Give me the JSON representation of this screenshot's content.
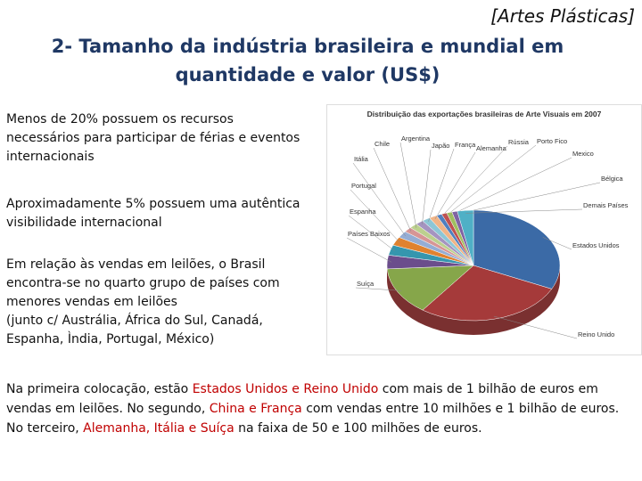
{
  "header": {
    "tag": "[Artes Plásticas]",
    "title_lines": [
      "2- Tamanho da indústria brasileira e mundial em",
      "quantidade e valor (US$)"
    ]
  },
  "paragraphs": [
    [
      "Menos de 20% possuem os recursos",
      "necessários para participar de férias e eventos",
      "internacionais"
    ],
    [
      "Aproximadamente 5% possuem uma autêntica",
      "visibilidade internacional"
    ],
    [
      "Em relação às vendas em leilões, o Brasil",
      "encontra-se no quarto grupo de países com",
      "menores vendas em leilões",
      "(junto c/ Austrália, África do Sul, Canadá,",
      "Espanha, Ìndia, Portugal, México)"
    ]
  ],
  "summary": [
    {
      "text": "Na primeira colocação, estão "
    },
    {
      "text": "Estados Unidos e Reino Unido",
      "color": "#c00000"
    },
    {
      "text": " com mais de 1 bilhão de euros em vendas em leilões. No segundo, "
    },
    {
      "text": "China e França",
      "color": "#c00000"
    },
    {
      "text": " com vendas entre 10 milhões e 1 bilhão de euros. No terceiro, "
    },
    {
      "text": "Alemanha, Itália e Suíça",
      "color": "#c00000"
    },
    {
      "text": " na faixa de 50 e 100 milhões de euros."
    }
  ],
  "chart_data": {
    "type": "pie",
    "title": "Distribuição das exportações brasileiras de Arte Visuais em 2007",
    "categories": [
      "Estados Unidos",
      "Reino Unido",
      "Suíça",
      "Países Baixos",
      "Espanha",
      "Portugal",
      "Itália",
      "Chile",
      "Argentina",
      "Japão",
      "França",
      "Alemanha",
      "Rússia",
      "Porto Fico",
      "Mexico",
      "Bélgica",
      "Demais Países"
    ],
    "values": [
      32,
      28,
      14,
      4,
      3,
      2.5,
      2,
      1.5,
      1.5,
      1.5,
      1.5,
      1.5,
      1,
      1,
      1,
      1,
      3
    ],
    "colors": [
      "#3b6aa6",
      "#a53a3a",
      "#86a64a",
      "#6b4d8c",
      "#3596ae",
      "#e0822f",
      "#95add4",
      "#d79595",
      "#bcd08e",
      "#a594c0",
      "#8cc6d6",
      "#f0b487",
      "#4f7fbf",
      "#c05050",
      "#9fbf5f",
      "#7f63a3",
      "#4fb0c6"
    ]
  }
}
